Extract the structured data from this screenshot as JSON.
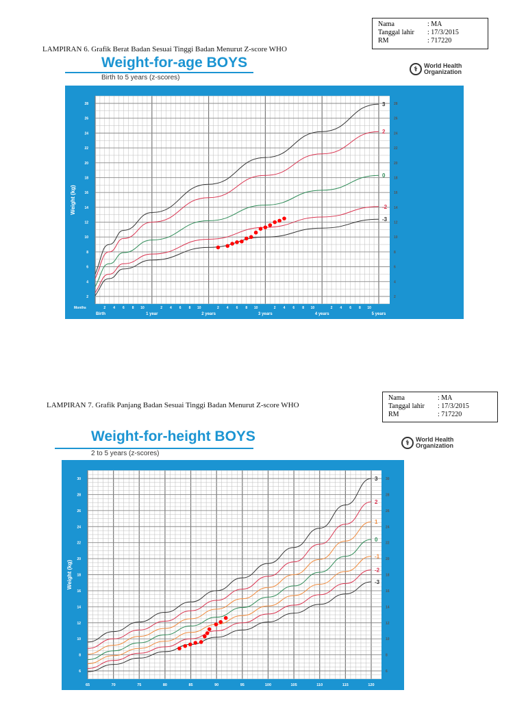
{
  "patient_info": [
    {
      "label": "Nama",
      "value": ": MA"
    },
    {
      "label": "Tanggal lahir",
      "value": ": 17/3/2015"
    },
    {
      "label": "RM",
      "value": ": 717220"
    }
  ],
  "section1": {
    "caption": "LAMPIRAN 6. Grafik Berat Badan Sesuai Tinggi Badan Menurut Z-score WHO",
    "title": "Weight-for-age BOYS",
    "subtitle": "Birth to 5 years (z-scores)",
    "logo_line1": "World Health",
    "logo_line2": "Organization"
  },
  "section2": {
    "caption": "LAMPIRAN 7. Grafik Panjang Badan Sesuai Tinggi Badan Menurut Z-score WHO",
    "title": "Weight-for-height BOYS",
    "subtitle": "2 to 5 years (z-scores)",
    "logo_line1": "World Health",
    "logo_line2": "Organization"
  },
  "colors": {
    "frame": "#1b94d2",
    "black": "#333333",
    "red": "#d9334f",
    "green": "#2e8b57",
    "orange": "#f08a3c",
    "points": "#ff0000"
  },
  "chart_data": [
    {
      "type": "line",
      "title": "Weight-for-age BOYS",
      "ylabel": "Weight (kg)",
      "xlabel_months": "Months",
      "x_unit": "months",
      "xlim": [
        0,
        60
      ],
      "ylim": [
        1,
        29
      ],
      "yticks": [
        2,
        4,
        6,
        8,
        10,
        12,
        14,
        16,
        18,
        20,
        22,
        24,
        26,
        28
      ],
      "year_labels": [
        "Birth",
        "1 year",
        "2 years",
        "3 years",
        "4 years",
        "5 years"
      ],
      "month_tick_labels": [
        "2",
        "4",
        "6",
        "8",
        "10"
      ],
      "grid": true,
      "x": [
        0,
        3,
        6,
        12,
        24,
        36,
        48,
        60
      ],
      "series": [
        {
          "name": "3",
          "color": "black",
          "values": [
            5.0,
            9.0,
            10.9,
            13.3,
            17.1,
            20.7,
            24.2,
            27.9
          ]
        },
        {
          "name": "2",
          "color": "red",
          "values": [
            4.4,
            8.0,
            9.8,
            12.0,
            15.3,
            18.3,
            21.2,
            24.2
          ]
        },
        {
          "name": "0",
          "color": "green",
          "values": [
            3.3,
            6.4,
            7.9,
            9.6,
            12.2,
            14.3,
            16.3,
            18.3
          ]
        },
        {
          "name": "-2",
          "color": "red",
          "values": [
            2.5,
            5.0,
            6.4,
            7.7,
            9.7,
            11.3,
            12.7,
            14.1
          ]
        },
        {
          "name": "-3",
          "color": "black",
          "values": [
            2.1,
            4.4,
            5.7,
            6.9,
            8.6,
            10.0,
            11.2,
            12.4
          ]
        }
      ],
      "points": [
        [
          26,
          8.6
        ],
        [
          28,
          8.8
        ],
        [
          29,
          9.1
        ],
        [
          30,
          9.3
        ],
        [
          31,
          9.4
        ],
        [
          32,
          9.8
        ],
        [
          33,
          10.0
        ],
        [
          34,
          10.6
        ],
        [
          35,
          11.1
        ],
        [
          36,
          11.3
        ],
        [
          37,
          11.6
        ],
        [
          38,
          12.0
        ],
        [
          39,
          12.2
        ],
        [
          40,
          12.5
        ]
      ]
    },
    {
      "type": "line",
      "title": "Weight-for-height BOYS",
      "ylabel": "Weight (kg)",
      "x_unit": "cm",
      "xlim": [
        65,
        120
      ],
      "ylim": [
        5,
        31
      ],
      "xticks": [
        65,
        70,
        75,
        80,
        85,
        90,
        95,
        100,
        105,
        110,
        115,
        120
      ],
      "yticks": [
        6,
        8,
        10,
        12,
        14,
        16,
        18,
        20,
        22,
        24,
        26,
        28,
        30
      ],
      "grid": true,
      "x": [
        65,
        70,
        75,
        80,
        85,
        90,
        95,
        100,
        105,
        110,
        115,
        120
      ],
      "series": [
        {
          "name": "3",
          "color": "black",
          "values": [
            9.6,
            10.9,
            12.1,
            13.3,
            14.6,
            16.0,
            17.6,
            19.4,
            21.4,
            23.8,
            26.7,
            30.0
          ]
        },
        {
          "name": "2",
          "color": "red",
          "values": [
            8.8,
            10.0,
            11.1,
            12.2,
            13.5,
            14.8,
            16.2,
            17.8,
            19.6,
            21.8,
            24.3,
            27.1
          ]
        },
        {
          "name": "1",
          "color": "orange",
          "values": [
            8.1,
            9.2,
            10.3,
            11.3,
            12.5,
            13.7,
            15.0,
            16.4,
            18.0,
            19.9,
            22.2,
            24.6
          ]
        },
        {
          "name": "0",
          "color": "green",
          "values": [
            7.4,
            8.5,
            9.5,
            10.5,
            11.6,
            12.7,
            13.9,
            15.2,
            16.6,
            18.3,
            20.3,
            22.4
          ]
        },
        {
          "name": "-1",
          "color": "orange",
          "values": [
            6.9,
            7.9,
            8.8,
            9.7,
            10.8,
            11.8,
            12.9,
            14.1,
            15.4,
            16.8,
            18.4,
            20.3
          ]
        },
        {
          "name": "-2",
          "color": "red",
          "values": [
            6.3,
            7.3,
            8.2,
            9.0,
            10.0,
            11.0,
            12.0,
            13.1,
            14.2,
            15.5,
            16.9,
            18.6
          ]
        },
        {
          "name": "-3",
          "color": "black",
          "values": [
            5.9,
            6.8,
            7.6,
            8.4,
            9.3,
            10.2,
            11.1,
            12.1,
            13.2,
            14.3,
            15.6,
            17.1
          ]
        }
      ],
      "points": [
        [
          82.8,
          8.8
        ],
        [
          83.9,
          9.1
        ],
        [
          84.9,
          9.3
        ],
        [
          85.9,
          9.5
        ],
        [
          87.0,
          9.6
        ],
        [
          87.7,
          10.3
        ],
        [
          88.2,
          10.7
        ],
        [
          88.6,
          11.2
        ],
        [
          89.9,
          11.8
        ],
        [
          90.8,
          12.1
        ],
        [
          91.8,
          12.6
        ]
      ]
    }
  ]
}
